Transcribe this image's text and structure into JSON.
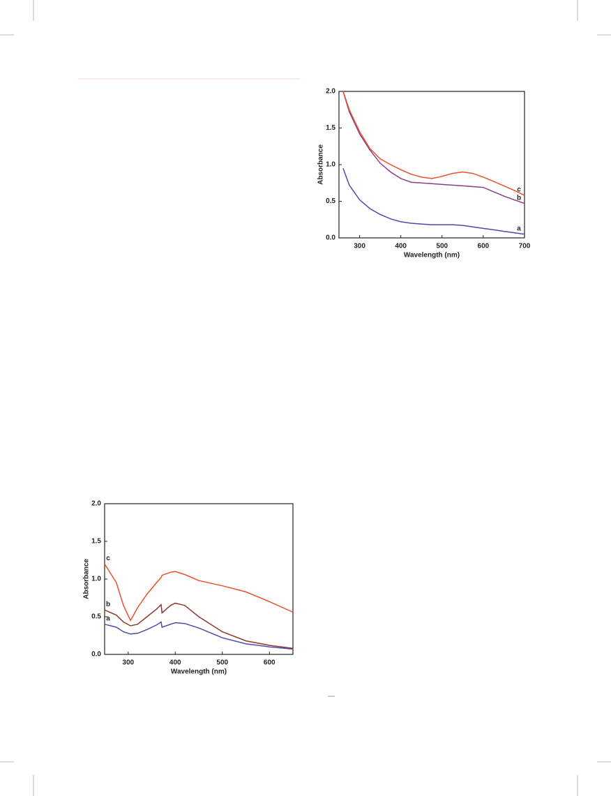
{
  "chart_data": [
    {
      "type": "line",
      "xlabel": "Wavelength (nm)",
      "ylabel": "Absorbance",
      "x": [
        260,
        275,
        300,
        325,
        350,
        375,
        400,
        425,
        450,
        475,
        500,
        525,
        550,
        575,
        600,
        625,
        650,
        675,
        700
      ],
      "series": [
        {
          "name": "a",
          "color": "#4b4ba6",
          "values": [
            0.95,
            0.72,
            0.52,
            0.4,
            0.32,
            0.26,
            0.22,
            0.2,
            0.19,
            0.18,
            0.18,
            0.18,
            0.17,
            0.15,
            0.13,
            0.11,
            0.09,
            0.07,
            0.05
          ]
        },
        {
          "name": "b",
          "color": "#8a3d8a",
          "values": [
            2.0,
            1.72,
            1.42,
            1.2,
            1.02,
            0.9,
            0.81,
            0.76,
            0.75,
            0.74,
            0.73,
            0.72,
            0.71,
            0.7,
            0.69,
            0.63,
            0.57,
            0.52,
            0.47
          ]
        },
        {
          "name": "c",
          "color": "#e8502e",
          "values": [
            2.0,
            1.75,
            1.45,
            1.22,
            1.08,
            1.0,
            0.93,
            0.87,
            0.83,
            0.81,
            0.84,
            0.88,
            0.9,
            0.88,
            0.83,
            0.77,
            0.71,
            0.65,
            0.58
          ]
        }
      ],
      "xlim": [
        250,
        700
      ],
      "ylim": [
        0,
        2
      ],
      "xticks": [
        300,
        400,
        500,
        600,
        700
      ],
      "yticks": [
        {
          "value": 0,
          "label": "0.0"
        },
        0.5,
        {
          "value": 1,
          "label": "1.0"
        },
        1.5,
        {
          "value": 2,
          "label": "2.0"
        }
      ]
    },
    {
      "type": "line",
      "xlabel": "Wavelength (nm)",
      "ylabel": "Absorbance",
      "x": [
        250,
        275,
        290,
        305,
        320,
        340,
        360,
        370,
        372,
        390,
        400,
        420,
        450,
        500,
        550,
        600,
        650
      ],
      "series": [
        {
          "name": "a",
          "color": "#4b4ba6",
          "values": [
            0.4,
            0.36,
            0.3,
            0.27,
            0.28,
            0.33,
            0.39,
            0.43,
            0.36,
            0.4,
            0.42,
            0.41,
            0.35,
            0.22,
            0.14,
            0.1,
            0.07
          ]
        },
        {
          "name": "b",
          "color": "#8a3a2e",
          "values": [
            0.59,
            0.52,
            0.43,
            0.38,
            0.4,
            0.5,
            0.6,
            0.66,
            0.55,
            0.65,
            0.68,
            0.65,
            0.5,
            0.3,
            0.18,
            0.12,
            0.08
          ]
        },
        {
          "name": "c",
          "color": "#e8502e",
          "values": [
            1.2,
            0.95,
            0.65,
            0.45,
            0.62,
            0.8,
            0.95,
            1.02,
            1.05,
            1.09,
            1.1,
            1.06,
            0.98,
            0.91,
            0.83,
            0.7,
            0.56
          ]
        }
      ],
      "xlim": [
        250,
        650
      ],
      "ylim": [
        0,
        2
      ],
      "xticks": [
        300,
        400,
        500,
        600
      ],
      "yticks": [
        {
          "value": 0,
          "label": "0.0"
        },
        0.5,
        {
          "value": 1,
          "label": "1.0"
        },
        1.5,
        {
          "value": 2,
          "label": "2.0"
        }
      ]
    }
  ]
}
